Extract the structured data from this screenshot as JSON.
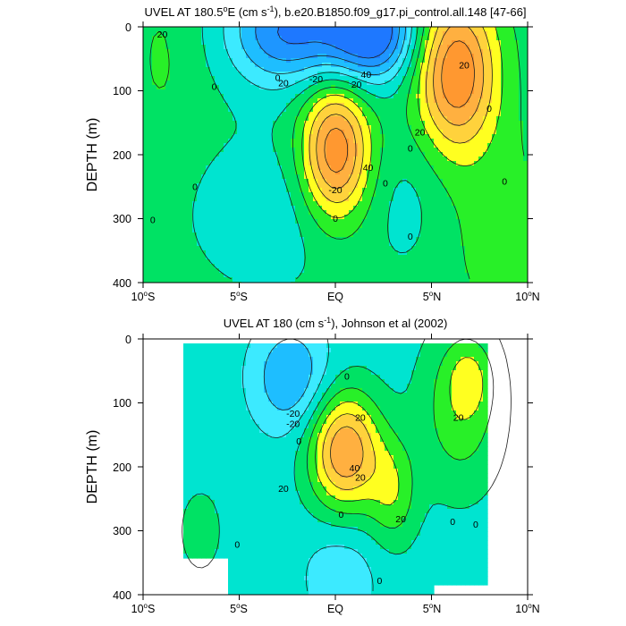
{
  "chart_data": [
    {
      "type": "contour",
      "title_prefix": "UVEL AT 180.5",
      "title_sup1": "o",
      "title_mid": "E (cm s",
      "title_sup2": "-1",
      "title_suffix": "), b.e20.B1850.f09_g17.pi_control.all.148 [47-66]",
      "ylabel": "DEPTH (m)",
      "xlim": [
        -10,
        10
      ],
      "ylim": [
        400,
        0
      ],
      "yticks": [
        "0",
        "100",
        "200",
        "300",
        "400"
      ],
      "xticks": [
        {
          "main": "10",
          "sup": "o",
          "suf": "S"
        },
        {
          "main": "5",
          "sup": "o",
          "suf": "S"
        },
        {
          "main": "EQ",
          "sup": "",
          "suf": ""
        },
        {
          "main": "5",
          "sup": "o",
          "suf": "N"
        },
        {
          "main": "10",
          "sup": "o",
          "suf": "N"
        }
      ],
      "contour_labels": [
        "20",
        "-20",
        "40",
        "20",
        "0",
        "-20",
        "40",
        "20",
        "0",
        "20",
        "0",
        "20",
        "0",
        "0",
        "0",
        "0",
        "0",
        "0",
        "0"
      ],
      "field": {
        "background": 5,
        "blobs": [
          {
            "lat": -3.2,
            "depth": 0,
            "a": -30,
            "sx": 2.0,
            "sz": 70
          },
          {
            "lat": 2.0,
            "depth": 0,
            "a": -40,
            "sx": 1.5,
            "sz": 60
          },
          {
            "lat": 0.0,
            "depth": 15,
            "a": -30,
            "sx": 2.6,
            "sz": 50
          },
          {
            "lat": 0.0,
            "depth": 195,
            "a": 55,
            "sx": 1.25,
            "sz": 75
          },
          {
            "lat": 6.3,
            "depth": 70,
            "a": 55,
            "sx": 1.45,
            "sz": 85
          },
          {
            "lat": -9.0,
            "depth": 50,
            "a": 6,
            "sx": 1.2,
            "sz": 100
          },
          {
            "lat": -3.5,
            "depth": 290,
            "a": -12,
            "sx": 3.0,
            "sz": 90
          },
          {
            "lat": 3.8,
            "depth": 280,
            "a": -8,
            "sx": 1.4,
            "sz": 80
          },
          {
            "lat": 8.5,
            "depth": 320,
            "a": 8,
            "sx": 2.2,
            "sz": 120
          }
        ]
      }
    },
    {
      "type": "contour",
      "title_prefix": "UVEL AT 180 (cm s",
      "title_sup1": "-1",
      "title_mid": "), Johnson et al (2002)",
      "title_sup2": "",
      "title_suffix": "",
      "ylabel": "DEPTH (m)",
      "xlim": [
        -10,
        10
      ],
      "ylim": [
        400,
        0
      ],
      "yticks": [
        "0",
        "100",
        "200",
        "300",
        "400"
      ],
      "xticks": [
        {
          "main": "10",
          "sup": "o",
          "suf": "S"
        },
        {
          "main": "5",
          "sup": "o",
          "suf": "S"
        },
        {
          "main": "EQ",
          "sup": "",
          "suf": ""
        },
        {
          "main": "5",
          "sup": "o",
          "suf": "N"
        },
        {
          "main": "10",
          "sup": "o",
          "suf": "N"
        }
      ],
      "contour_labels": [
        "-20",
        "20",
        "40",
        "20",
        "20",
        "20",
        "0",
        "0",
        "0",
        "0",
        "0",
        "0",
        "0",
        "0",
        "20",
        "-20"
      ],
      "field": {
        "background": -5,
        "data_lat_range": [
          -8,
          8
        ],
        "data_top_depth": 10,
        "blobs": [
          {
            "lat": -2.3,
            "depth": 60,
            "a": -25,
            "sx": 1.4,
            "sz": 60
          },
          {
            "lat": 0.5,
            "depth": 175,
            "a": 55,
            "sx": 1.3,
            "sz": 65
          },
          {
            "lat": 3.0,
            "depth": 240,
            "a": 22,
            "sx": 0.9,
            "sz": 60
          },
          {
            "lat": 6.5,
            "depth": 110,
            "a": 22,
            "sx": 1.5,
            "sz": 90
          },
          {
            "lat": 7.0,
            "depth": 60,
            "a": 15,
            "sx": 0.8,
            "sz": 40
          },
          {
            "lat": 0.3,
            "depth": 370,
            "a": -12,
            "sx": 1.4,
            "sz": 60
          },
          {
            "lat": -7.0,
            "depth": 300,
            "a": 8,
            "sx": 1.0,
            "sz": 60
          }
        ]
      }
    }
  ]
}
